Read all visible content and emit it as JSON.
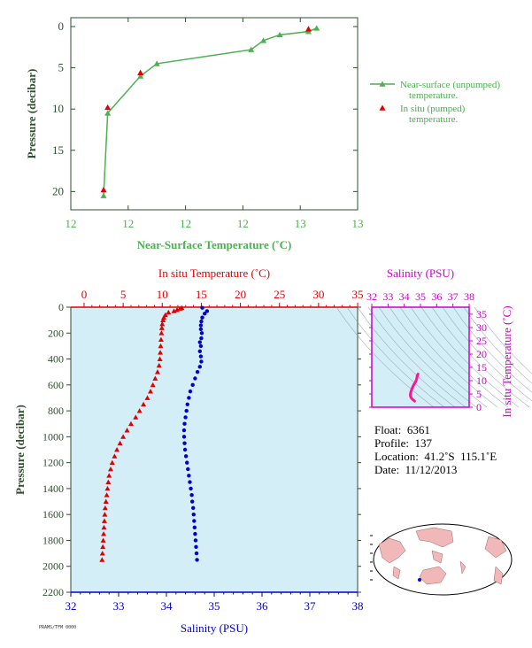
{
  "colors": {
    "near_surface": "#4caf50",
    "insitu": "#e00000",
    "salinity": "#0000cc",
    "panel_bg": "#d4eef7",
    "axis": "#2f4f2f",
    "magenta": "#cc00cc",
    "ts_line": "#ff1493"
  },
  "chart_data": [
    {
      "type": "scatter",
      "name_key": "top",
      "x_ticks": [
        "12",
        "12",
        "12",
        "12",
        "13",
        "13"
      ],
      "y_ticks": [
        "0",
        "5",
        "10",
        "15",
        "20"
      ],
      "xlabel": "Near-Surface Temperature (˚C)",
      "ylabel": "Pressure (decibar)",
      "xlim": [
        11.9,
        12.6
      ],
      "ylim": [
        0,
        22
      ],
      "series": [
        {
          "name": "Near-surface (unpumped) temperature.",
          "style": "line-triangle",
          "points": [
            [
              12.5,
              0.2
            ],
            [
              12.48,
              0.6
            ],
            [
              12.41,
              1.0
            ],
            [
              12.37,
              1.7
            ],
            [
              12.34,
              2.8
            ],
            [
              12.11,
              4.5
            ],
            [
              12.07,
              6.0
            ],
            [
              11.99,
              10.5
            ],
            [
              11.98,
              20.5
            ]
          ]
        },
        {
          "name": "In situ (pumped) temperature.",
          "style": "triangle",
          "points": [
            [
              12.48,
              0.3
            ],
            [
              12.07,
              5.6
            ],
            [
              11.99,
              9.8
            ],
            [
              11.98,
              19.8
            ]
          ]
        }
      ]
    },
    {
      "type": "scatter",
      "name_key": "profile",
      "top_axis": {
        "label": "In situ Temperature (˚C)",
        "ticks": [
          "0",
          "5",
          "10",
          "15",
          "20",
          "25",
          "30",
          "35"
        ],
        "lim": [
          0,
          35
        ]
      },
      "bottom_axis": {
        "label": "Salinity (PSU)",
        "ticks": [
          "32",
          "33",
          "34",
          "35",
          "36",
          "37",
          "38"
        ],
        "lim": [
          32,
          38
        ]
      },
      "y_axis": {
        "label": "Pressure (decibar)",
        "ticks": [
          "0",
          "200",
          "400",
          "600",
          "800",
          "1000",
          "1200",
          "1400",
          "1600",
          "1800",
          "2000",
          "2200"
        ],
        "lim": [
          0,
          2200
        ]
      },
      "series": [
        {
          "name": "In situ Temperature",
          "points": [
            [
              12.5,
              5
            ],
            [
              12.3,
              10
            ],
            [
              11.9,
              20
            ],
            [
              11.5,
              30
            ],
            [
              10.8,
              40
            ],
            [
              10.4,
              60
            ],
            [
              10.2,
              80
            ],
            [
              10.1,
              100
            ],
            [
              10.0,
              130
            ],
            [
              9.95,
              160
            ],
            [
              9.9,
              200
            ],
            [
              9.85,
              250
            ],
            [
              9.8,
              300
            ],
            [
              9.75,
              350
            ],
            [
              9.7,
              400
            ],
            [
              9.6,
              450
            ],
            [
              9.4,
              500
            ],
            [
              9.1,
              550
            ],
            [
              8.8,
              600
            ],
            [
              8.5,
              650
            ],
            [
              8.1,
              700
            ],
            [
              7.6,
              750
            ],
            [
              7.1,
              800
            ],
            [
              6.6,
              850
            ],
            [
              6.0,
              900
            ],
            [
              5.5,
              950
            ],
            [
              5.0,
              1000
            ],
            [
              4.6,
              1050
            ],
            [
              4.2,
              1100
            ],
            [
              3.9,
              1150
            ],
            [
              3.6,
              1200
            ],
            [
              3.4,
              1250
            ],
            [
              3.2,
              1300
            ],
            [
              3.1,
              1350
            ],
            [
              3.0,
              1400
            ],
            [
              2.9,
              1450
            ],
            [
              2.8,
              1500
            ],
            [
              2.7,
              1550
            ],
            [
              2.65,
              1600
            ],
            [
              2.6,
              1650
            ],
            [
              2.55,
              1700
            ],
            [
              2.5,
              1750
            ],
            [
              2.45,
              1800
            ],
            [
              2.4,
              1850
            ],
            [
              2.35,
              1900
            ],
            [
              2.3,
              1950
            ]
          ]
        },
        {
          "name": "Salinity",
          "points": [
            [
              34.75,
              5
            ],
            [
              34.85,
              30
            ],
            [
              34.8,
              50
            ],
            [
              34.75,
              80
            ],
            [
              34.73,
              110
            ],
            [
              34.72,
              140
            ],
            [
              34.72,
              170
            ],
            [
              34.74,
              200
            ],
            [
              34.73,
              240
            ],
            [
              34.7,
              270
            ],
            [
              34.72,
              300
            ],
            [
              34.7,
              340
            ],
            [
              34.72,
              380
            ],
            [
              34.73,
              420
            ],
            [
              34.7,
              460
            ],
            [
              34.65,
              500
            ],
            [
              34.6,
              550
            ],
            [
              34.55,
              600
            ],
            [
              34.5,
              650
            ],
            [
              34.47,
              700
            ],
            [
              34.44,
              750
            ],
            [
              34.42,
              800
            ],
            [
              34.4,
              850
            ],
            [
              34.38,
              900
            ],
            [
              34.37,
              950
            ],
            [
              34.37,
              1000
            ],
            [
              34.38,
              1050
            ],
            [
              34.39,
              1100
            ],
            [
              34.41,
              1150
            ],
            [
              34.43,
              1200
            ],
            [
              34.45,
              1250
            ],
            [
              34.47,
              1300
            ],
            [
              34.49,
              1350
            ],
            [
              34.51,
              1400
            ],
            [
              34.53,
              1450
            ],
            [
              34.54,
              1500
            ],
            [
              34.56,
              1550
            ],
            [
              34.57,
              1600
            ],
            [
              34.58,
              1650
            ],
            [
              34.59,
              1700
            ],
            [
              34.6,
              1750
            ],
            [
              34.61,
              1800
            ],
            [
              34.62,
              1850
            ],
            [
              34.63,
              1900
            ],
            [
              34.64,
              1950
            ]
          ]
        }
      ]
    },
    {
      "type": "line",
      "name_key": "ts",
      "top_axis": {
        "label": "Salinity (PSU)",
        "ticks": [
          "32",
          "33",
          "34",
          "35",
          "36",
          "37",
          "38"
        ],
        "lim": [
          32,
          38
        ]
      },
      "right_axis": {
        "label": "In situ Temperature (˚C)",
        "ticks": [
          "0",
          "5",
          "10",
          "15",
          "20",
          "25",
          "30",
          "35"
        ],
        "lim": [
          0,
          35
        ]
      },
      "series": [
        {
          "name": "T-S",
          "points": [
            [
              34.85,
              12.5
            ],
            [
              34.8,
              11.8
            ],
            [
              34.78,
              11.0
            ],
            [
              34.74,
              10.2
            ],
            [
              34.7,
              9.6
            ],
            [
              34.62,
              8.8
            ],
            [
              34.55,
              8.0
            ],
            [
              34.48,
              7.0
            ],
            [
              34.42,
              6.0
            ],
            [
              34.38,
              5.0
            ],
            [
              34.38,
              4.2
            ],
            [
              34.42,
              3.6
            ],
            [
              34.5,
              3.0
            ],
            [
              34.58,
              2.6
            ],
            [
              34.64,
              2.3
            ]
          ]
        }
      ]
    }
  ],
  "info": {
    "float": "Float:  6361",
    "profile": "Profile:  137",
    "location": "Location:  41.2˚S  115.1˚E",
    "date": "Date:  11/12/2013"
  },
  "footer_code": "PRAMS/TFM 0000"
}
